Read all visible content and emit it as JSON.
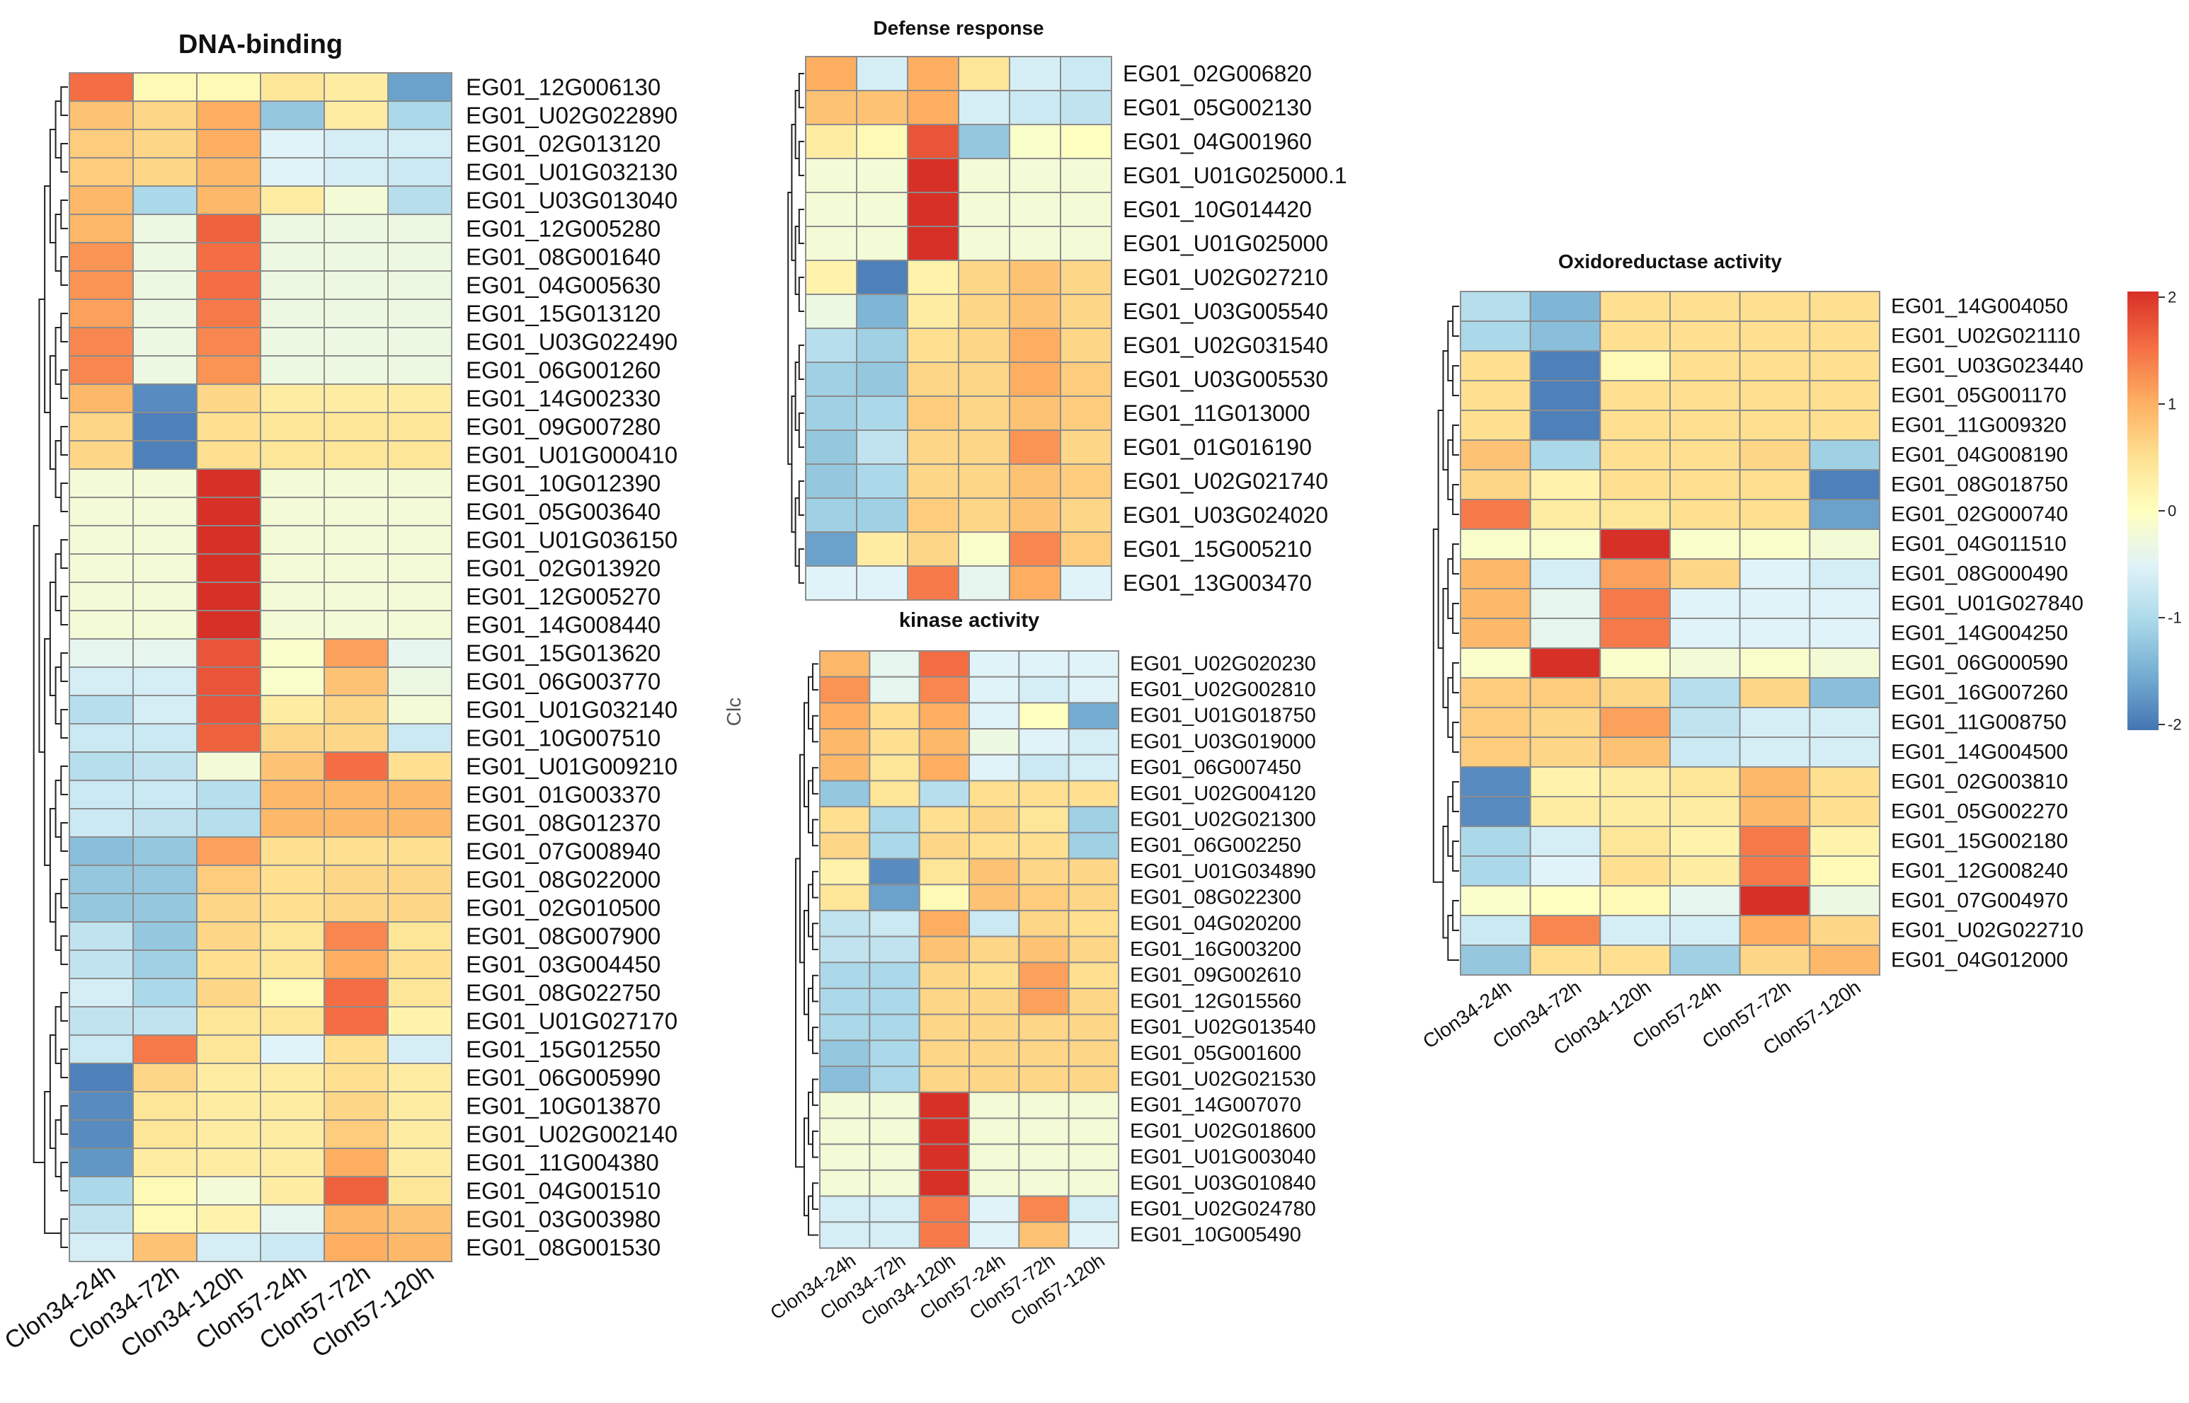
{
  "chart_data": [
    {
      "type": "heatmap",
      "title": "DNA-binding",
      "columns": [
        "Clon34-24h",
        "Clon34-72h",
        "Clon34-120h",
        "Clon57-24h",
        "Clon57-72h",
        "Clon57-120h"
      ],
      "rows": [
        "EG01_12G006130",
        "EG01_U02G022890",
        "EG01_02G013120",
        "EG01_U01G032130",
        "EG01_U03G013040",
        "EG01_12G005280",
        "EG01_08G001640",
        "EG01_04G005630",
        "EG01_15G013120",
        "EG01_U03G022490",
        "EG01_06G001260",
        "EG01_14G002330",
        "EG01_09G007280",
        "EG01_U01G000410",
        "EG01_10G012390",
        "EG01_05G003640",
        "EG01_U01G036150",
        "EG01_02G013920",
        "EG01_12G005270",
        "EG01_14G008440",
        "EG01_15G013620",
        "EG01_06G003770",
        "EG01_U01G032140",
        "EG01_10G007510",
        "EG01_U01G009210",
        "EG01_01G003370",
        "EG01_08G012370",
        "EG01_07G008940",
        "EG01_08G022000",
        "EG01_02G010500",
        "EG01_08G007900",
        "EG01_03G004450",
        "EG01_08G022750",
        "EG01_U01G027170",
        "EG01_15G012550",
        "EG01_06G005990",
        "EG01_10G013870",
        "EG01_U02G002140",
        "EG01_11G004380",
        "EG01_04G001510",
        "EG01_03G003980",
        "EG01_08G001530"
      ],
      "values": [
        [
          1.5,
          0.1,
          0.1,
          0.4,
          0.3,
          -1.6
        ],
        [
          0.8,
          0.6,
          1.0,
          -1.2,
          0.3,
          -1.0
        ],
        [
          0.7,
          0.6,
          1.0,
          -0.5,
          -0.6,
          -0.6
        ],
        [
          0.7,
          0.6,
          0.9,
          -0.5,
          -0.6,
          -0.7
        ],
        [
          0.9,
          -1.0,
          0.9,
          0.3,
          -0.2,
          -0.9
        ],
        [
          0.9,
          -0.3,
          1.6,
          -0.3,
          -0.3,
          -0.3
        ],
        [
          1.2,
          -0.3,
          1.5,
          -0.3,
          -0.3,
          -0.3
        ],
        [
          1.2,
          -0.3,
          1.5,
          -0.3,
          -0.3,
          -0.3
        ],
        [
          1.1,
          -0.3,
          1.4,
          -0.3,
          -0.3,
          -0.3
        ],
        [
          1.3,
          -0.3,
          1.3,
          -0.3,
          -0.3,
          -0.3
        ],
        [
          1.3,
          -0.3,
          1.2,
          -0.3,
          -0.3,
          -0.3
        ],
        [
          0.9,
          -1.8,
          0.6,
          0.3,
          0.3,
          0.3
        ],
        [
          0.6,
          -1.9,
          0.5,
          0.4,
          0.4,
          0.4
        ],
        [
          0.6,
          -1.9,
          0.5,
          0.4,
          0.4,
          0.4
        ],
        [
          -0.2,
          -0.2,
          2.0,
          -0.2,
          -0.2,
          -0.2
        ],
        [
          -0.2,
          -0.2,
          2.0,
          -0.2,
          -0.2,
          -0.2
        ],
        [
          -0.2,
          -0.2,
          2.0,
          -0.2,
          -0.2,
          -0.2
        ],
        [
          -0.2,
          -0.2,
          2.0,
          -0.2,
          -0.2,
          -0.2
        ],
        [
          -0.2,
          -0.2,
          2.0,
          -0.2,
          -0.2,
          -0.2
        ],
        [
          -0.2,
          -0.2,
          2.0,
          -0.2,
          -0.2,
          -0.2
        ],
        [
          -0.4,
          -0.4,
          1.7,
          -0.1,
          1.1,
          -0.4
        ],
        [
          -0.6,
          -0.6,
          1.7,
          -0.1,
          0.8,
          -0.3
        ],
        [
          -0.9,
          -0.6,
          1.7,
          0.3,
          0.6,
          -0.2
        ],
        [
          -0.7,
          -0.7,
          1.6,
          0.6,
          0.6,
          -0.7
        ],
        [
          -0.9,
          -0.8,
          -0.2,
          0.8,
          1.5,
          0.5
        ],
        [
          -0.7,
          -0.7,
          -0.9,
          0.9,
          0.9,
          0.9
        ],
        [
          -0.7,
          -0.8,
          -0.9,
          0.9,
          0.9,
          0.9
        ],
        [
          -1.3,
          -1.2,
          1.1,
          0.5,
          0.5,
          0.5
        ],
        [
          -1.2,
          -1.2,
          0.7,
          0.5,
          0.6,
          0.6
        ],
        [
          -1.2,
          -1.2,
          0.6,
          0.5,
          0.6,
          0.6
        ],
        [
          -0.8,
          -1.2,
          0.6,
          0.4,
          1.3,
          0.4
        ],
        [
          -0.8,
          -1.1,
          0.5,
          0.4,
          1.0,
          0.5
        ],
        [
          -0.6,
          -1.0,
          0.6,
          0.1,
          1.5,
          0.4
        ],
        [
          -0.8,
          -0.8,
          0.4,
          0.4,
          1.5,
          0.2
        ],
        [
          -0.7,
          1.4,
          0.4,
          -0.5,
          0.5,
          -0.6
        ],
        [
          -1.9,
          0.6,
          0.3,
          0.3,
          0.5,
          0.3
        ],
        [
          -1.8,
          0.4,
          0.3,
          0.3,
          0.6,
          0.3
        ],
        [
          -1.8,
          0.4,
          0.3,
          0.3,
          0.7,
          0.3
        ],
        [
          -1.7,
          0.3,
          0.3,
          0.3,
          1.0,
          0.3
        ],
        [
          -1.0,
          0.1,
          -0.2,
          0.3,
          1.6,
          0.4
        ],
        [
          -0.8,
          0.1,
          0.2,
          -0.4,
          0.9,
          0.8
        ],
        [
          -0.6,
          0.8,
          -0.6,
          -0.7,
          1.0,
          0.9
        ]
      ]
    },
    {
      "type": "heatmap",
      "title": "Defense response",
      "columns": [
        "Clon34-24h",
        "Clon34-72h",
        "Clon34-120h",
        "Clon57-24h",
        "Clon57-72h",
        "Clon57-120h"
      ],
      "rows": [
        "EG01_02G006820",
        "EG01_05G002130",
        "EG01_04G001960",
        "EG01_U01G025000.1",
        "EG01_10G014420",
        "EG01_U01G025000",
        "EG01_U02G027210",
        "EG01_U03G005540",
        "EG01_U02G031540",
        "EG01_U03G005530",
        "EG01_11G013000",
        "EG01_01G016190",
        "EG01_U02G021740",
        "EG01_U03G024020",
        "EG01_15G005210",
        "EG01_13G003470"
      ],
      "values": [
        [
          1.0,
          -0.6,
          1.0,
          0.4,
          -0.6,
          -0.7
        ],
        [
          0.8,
          0.8,
          1.0,
          -0.6,
          -0.7,
          -0.8
        ],
        [
          0.3,
          0.1,
          1.7,
          -1.2,
          -0.1,
          0.0
        ],
        [
          -0.2,
          -0.2,
          2.0,
          -0.2,
          -0.2,
          -0.2
        ],
        [
          -0.2,
          -0.2,
          2.0,
          -0.2,
          -0.2,
          -0.2
        ],
        [
          -0.2,
          -0.2,
          2.0,
          -0.2,
          -0.2,
          -0.2
        ],
        [
          0.2,
          -1.9,
          0.2,
          0.6,
          0.8,
          0.6
        ],
        [
          -0.3,
          -1.4,
          0.3,
          0.6,
          0.8,
          0.6
        ],
        [
          -0.9,
          -1.1,
          0.5,
          0.6,
          1.0,
          0.6
        ],
        [
          -1.1,
          -1.2,
          0.6,
          0.6,
          1.0,
          0.7
        ],
        [
          -1.1,
          -1.0,
          0.7,
          0.6,
          0.8,
          0.7
        ],
        [
          -1.2,
          -0.8,
          0.6,
          0.6,
          1.2,
          0.6
        ],
        [
          -1.2,
          -1.0,
          0.6,
          0.6,
          0.8,
          0.7
        ],
        [
          -1.1,
          -1.1,
          0.7,
          0.6,
          0.8,
          0.6
        ],
        [
          -1.6,
          0.3,
          0.6,
          -0.1,
          1.3,
          0.7
        ],
        [
          -0.5,
          -0.5,
          1.4,
          -0.4,
          1.0,
          -0.5
        ]
      ]
    },
    {
      "type": "heatmap",
      "title": "kinase activity",
      "columns": [
        "Clon34-24h",
        "Clon34-72h",
        "Clon34-120h",
        "Clon57-24h",
        "Clon57-72h",
        "Clon57-120h"
      ],
      "rows": [
        "EG01_U02G020230",
        "EG01_U02G002810",
        "EG01_U01G018750",
        "EG01_U03G019000",
        "EG01_06G007450",
        "EG01_U02G004120",
        "EG01_U02G021300",
        "EG01_06G002250",
        "EG01_U01G034890",
        "EG01_08G022300",
        "EG01_04G020200",
        "EG01_16G003200",
        "EG01_09G002610",
        "EG01_12G015560",
        "EG01_U02G013540",
        "EG01_05G001600",
        "EG01_U02G021530",
        "EG01_14G007070",
        "EG01_U02G018600",
        "EG01_U01G003040",
        "EG01_U03G010840",
        "EG01_U02G024780",
        "EG01_10G005490"
      ],
      "values": [
        [
          0.9,
          -0.4,
          1.5,
          -0.5,
          -0.5,
          -0.5
        ],
        [
          1.2,
          -0.4,
          1.3,
          -0.5,
          -0.6,
          -0.5
        ],
        [
          1.0,
          0.5,
          1.0,
          -0.5,
          0.0,
          -1.5
        ],
        [
          0.9,
          0.5,
          0.9,
          -0.3,
          -0.5,
          -0.6
        ],
        [
          0.9,
          0.4,
          1.0,
          -0.5,
          -0.7,
          -0.6
        ],
        [
          -1.2,
          0.4,
          -0.9,
          0.5,
          0.5,
          0.5
        ],
        [
          0.5,
          -1.0,
          0.5,
          0.6,
          0.4,
          -1.1
        ],
        [
          0.6,
          -1.0,
          0.6,
          0.5,
          0.5,
          -1.1
        ],
        [
          0.2,
          -1.8,
          0.4,
          0.8,
          0.6,
          0.6
        ],
        [
          0.4,
          -1.6,
          0.1,
          0.8,
          0.7,
          0.6
        ],
        [
          -0.8,
          -0.7,
          1.0,
          -0.7,
          0.6,
          0.5
        ],
        [
          -0.8,
          -0.8,
          0.8,
          0.6,
          0.8,
          0.6
        ],
        [
          -1.0,
          -1.0,
          0.6,
          0.5,
          1.1,
          0.5
        ],
        [
          -1.0,
          -1.0,
          0.6,
          0.6,
          1.1,
          0.6
        ],
        [
          -1.0,
          -1.0,
          0.6,
          0.6,
          0.6,
          0.6
        ],
        [
          -1.2,
          -1.0,
          0.6,
          0.6,
          0.6,
          0.6
        ],
        [
          -1.3,
          -1.0,
          0.6,
          0.6,
          0.6,
          0.6
        ],
        [
          -0.2,
          -0.2,
          2.0,
          -0.2,
          -0.2,
          -0.2
        ],
        [
          -0.2,
          -0.2,
          2.0,
          -0.2,
          -0.2,
          -0.2
        ],
        [
          -0.2,
          -0.2,
          2.0,
          -0.2,
          -0.2,
          -0.2
        ],
        [
          -0.2,
          -0.2,
          2.0,
          -0.2,
          -0.2,
          -0.2
        ],
        [
          -0.6,
          -0.6,
          1.4,
          -0.5,
          1.3,
          -0.6
        ],
        [
          -0.6,
          -0.6,
          1.4,
          -0.5,
          0.8,
          -0.5
        ]
      ]
    },
    {
      "type": "heatmap",
      "title": "Oxidoreductase activity",
      "columns": [
        "Clon34-24h",
        "Clon34-72h",
        "Clon34-120h",
        "Clon57-24h",
        "Clon57-72h",
        "Clon57-120h"
      ],
      "rows": [
        "EG01_14G004050",
        "EG01_U02G021110",
        "EG01_U03G023440",
        "EG01_05G001170",
        "EG01_11G009320",
        "EG01_04G008190",
        "EG01_08G018750",
        "EG01_02G000740",
        "EG01_04G011510",
        "EG01_08G000490",
        "EG01_U01G027840",
        "EG01_14G004250",
        "EG01_06G000590",
        "EG01_16G007260",
        "EG01_11G008750",
        "EG01_14G004500",
        "EG01_02G003810",
        "EG01_05G002270",
        "EG01_15G002180",
        "EG01_12G008240",
        "EG01_07G004970",
        "EG01_U02G022710",
        "EG01_04G012000"
      ],
      "values": [
        [
          -0.9,
          -1.4,
          0.5,
          0.5,
          0.5,
          0.5
        ],
        [
          -1.0,
          -1.3,
          0.5,
          0.5,
          0.5,
          0.5
        ],
        [
          0.5,
          -1.9,
          0.1,
          0.5,
          0.5,
          0.5
        ],
        [
          0.5,
          -1.9,
          0.5,
          0.5,
          0.5,
          0.5
        ],
        [
          0.5,
          -1.9,
          0.5,
          0.5,
          0.5,
          0.5
        ],
        [
          0.8,
          -1.0,
          0.5,
          0.5,
          0.6,
          -1.1
        ],
        [
          0.6,
          0.2,
          0.5,
          0.5,
          0.5,
          -1.9
        ],
        [
          1.4,
          0.3,
          0.4,
          0.5,
          0.5,
          -1.6
        ],
        [
          -0.1,
          -0.1,
          2.0,
          -0.1,
          -0.1,
          -0.2
        ],
        [
          0.9,
          -0.6,
          1.1,
          0.6,
          -0.5,
          -0.6
        ],
        [
          0.9,
          -0.4,
          1.4,
          -0.5,
          -0.5,
          -0.5
        ],
        [
          0.9,
          -0.4,
          1.4,
          -0.5,
          -0.5,
          -0.5
        ],
        [
          -0.1,
          2.0,
          -0.1,
          -0.2,
          -0.1,
          -0.2
        ],
        [
          0.7,
          0.7,
          0.6,
          -0.9,
          0.6,
          -1.3
        ],
        [
          0.7,
          0.6,
          1.1,
          -0.8,
          -0.6,
          -0.6
        ],
        [
          0.7,
          0.6,
          0.8,
          -0.7,
          -0.6,
          -0.6
        ],
        [
          -1.8,
          0.2,
          0.3,
          0.4,
          0.9,
          0.5
        ],
        [
          -1.8,
          0.3,
          0.3,
          0.3,
          0.9,
          0.5
        ],
        [
          -1.0,
          -0.6,
          0.4,
          0.2,
          1.4,
          0.2
        ],
        [
          -1.0,
          -0.5,
          0.5,
          0.3,
          1.4,
          0.1
        ],
        [
          -0.1,
          0.0,
          0.1,
          -0.4,
          2.0,
          -0.3
        ],
        [
          -0.7,
          1.3,
          -0.6,
          -0.6,
          1.0,
          0.6
        ],
        [
          -1.2,
          0.5,
          0.5,
          -1.1,
          0.6,
          0.9
        ]
      ]
    }
  ],
  "legend": {
    "ticks": [
      "2",
      "1",
      "0",
      "-1",
      "-2"
    ],
    "min": -2,
    "max": 2
  },
  "fragments": {
    "kinase_clipped_label": "Clc"
  },
  "colors": {
    "low": "#4575b4",
    "mid_low": "#91bfdb",
    "mid": "#ffffbf",
    "mid_high": "#fc8d59",
    "high": "#d73027",
    "grid": "#8c8c8c",
    "scale": [
      "#d73027",
      "#f46d43",
      "#fdae61",
      "#fee090",
      "#ffffbf",
      "#e0f3f8",
      "#abd9e9",
      "#74add1",
      "#4575b4"
    ]
  }
}
